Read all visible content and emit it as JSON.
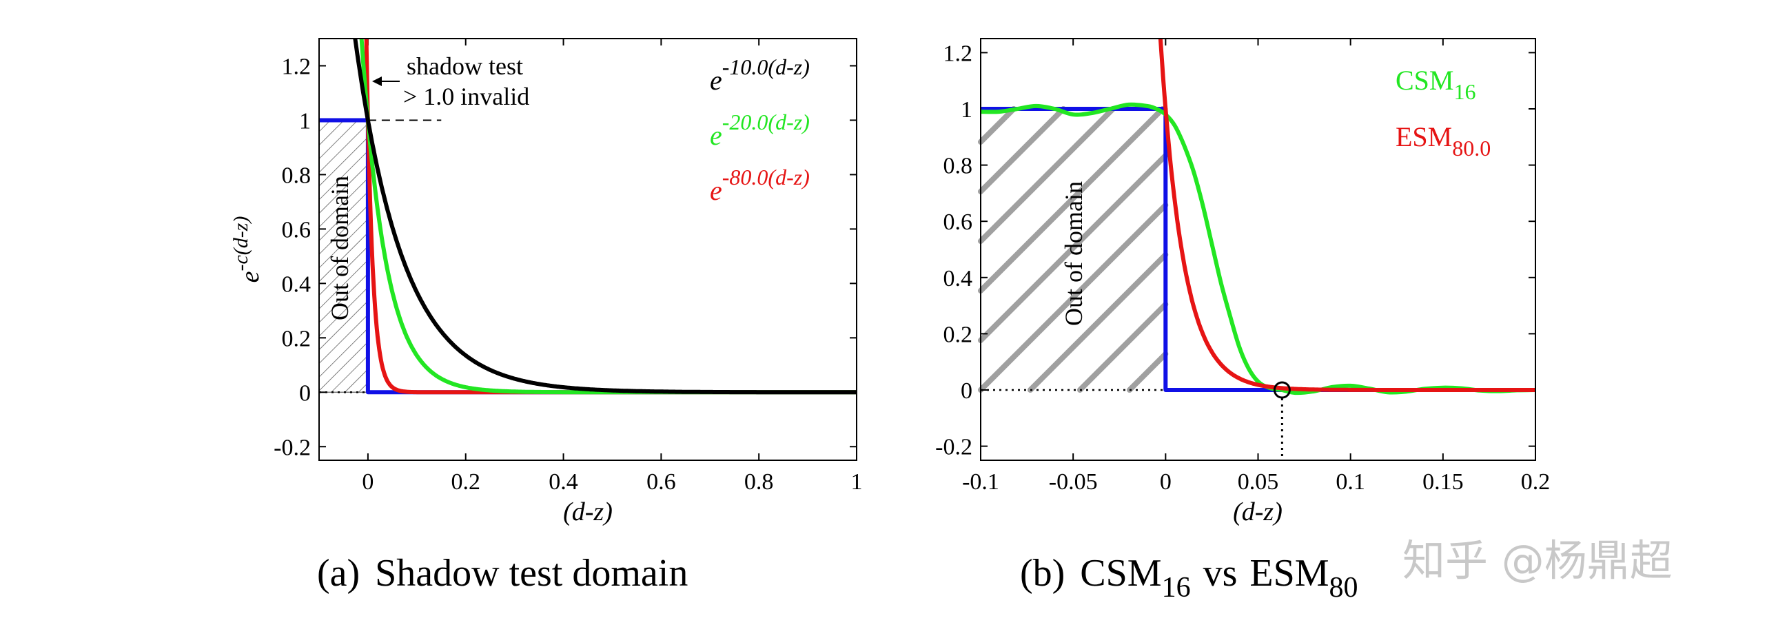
{
  "chart_data": [
    {
      "type": "line",
      "panel": "a",
      "caption_prefix": "(a)",
      "caption_text": "Shadow test domain",
      "xlabel": "(d-z)",
      "ylabel_base": "e",
      "ylabel_sup": "-c(d-z)",
      "xlim": [
        -0.1,
        1.0
      ],
      "ylim": [
        -0.25,
        1.3
      ],
      "xticks": [
        0,
        0.2,
        0.4,
        0.6,
        0.8,
        1
      ],
      "xtick_labels": [
        "0",
        "0.2",
        "0.4",
        "0.6",
        "0.8",
        "1"
      ],
      "yticks": [
        -0.2,
        0,
        0.2,
        0.4,
        0.6,
        0.8,
        1,
        1.2
      ],
      "ytick_labels": [
        "-0.2",
        "0",
        "0.2",
        "0.4",
        "0.6",
        "0.8",
        "1",
        "1.2"
      ],
      "annotation_line1": "shadow test",
      "annotation_line2": "> 1.0 invalid",
      "hatch_label": "Out of domain",
      "series": [
        {
          "name": "step",
          "color": "#1010e6",
          "x": [
            -0.1,
            0,
            0,
            1.0
          ],
          "y": [
            1,
            1,
            0,
            0
          ]
        },
        {
          "name": "exp10",
          "base": "e",
          "sup": "-10.0(d-z)",
          "color": "#000000",
          "c": 10
        },
        {
          "name": "exp20",
          "base": "e",
          "sup": "-20.0(d-z)",
          "color": "#22e622",
          "c": 20
        },
        {
          "name": "exp80",
          "base": "e",
          "sup": "-80.0(d-z)",
          "color": "#e61414",
          "c": 80
        }
      ]
    },
    {
      "type": "line",
      "panel": "b",
      "caption_prefix": "(b)",
      "caption_main1": "CSM",
      "caption_sub1": "16",
      "caption_vs": "vs",
      "caption_main2": "ESM",
      "caption_sub2": "80",
      "xlabel": "(d-z)",
      "xlim": [
        -0.1,
        0.2
      ],
      "ylim": [
        -0.25,
        1.25
      ],
      "xticks": [
        -0.1,
        -0.05,
        0,
        0.05,
        0.1,
        0.15,
        0.2
      ],
      "xtick_labels": [
        "-0.1",
        "-0.05",
        "0",
        "0.05",
        "0.1",
        "0.15",
        "0.2"
      ],
      "yticks": [
        -0.2,
        0,
        0.2,
        0.4,
        0.6,
        0.8,
        1,
        1.2
      ],
      "ytick_labels": [
        "-0.2",
        "0",
        "0.2",
        "0.4",
        "0.6",
        "0.8",
        "1",
        "1.2"
      ],
      "hatch_label": "Out of domain",
      "crossing_x": 0.063,
      "series": [
        {
          "name": "step",
          "color": "#1010e6",
          "x": [
            -0.1,
            0,
            0,
            0.2
          ],
          "y": [
            1,
            1,
            0,
            0
          ]
        },
        {
          "name": "CSM",
          "label": "CSM",
          "sub": "16",
          "color": "#22e622",
          "x": [
            -0.1,
            -0.09,
            -0.08,
            -0.07,
            -0.06,
            -0.05,
            -0.04,
            -0.03,
            -0.02,
            -0.01,
            -0.005,
            0,
            0.005,
            0.01,
            0.015,
            0.02,
            0.025,
            0.03,
            0.035,
            0.04,
            0.045,
            0.05,
            0.055,
            0.06,
            0.063,
            0.07,
            0.08,
            0.09,
            0.1,
            0.11,
            0.12,
            0.13,
            0.14,
            0.15,
            0.16,
            0.17,
            0.18,
            0.19,
            0.2
          ],
          "y": [
            0.99,
            0.99,
            1.0,
            1.01,
            1.0,
            0.98,
            0.985,
            1.0,
            1.015,
            1.01,
            1.0,
            0.98,
            0.94,
            0.87,
            0.78,
            0.66,
            0.52,
            0.38,
            0.26,
            0.15,
            0.075,
            0.03,
            0.01,
            0.002,
            0.0,
            -0.01,
            -0.005,
            0.01,
            0.015,
            0.005,
            -0.008,
            -0.006,
            0.004,
            0.008,
            0.006,
            -0.002,
            -0.004,
            -0.001,
            0.0
          ]
        },
        {
          "name": "ESM",
          "label": "ESM",
          "sub": "80.0",
          "color": "#e61414",
          "c": 80
        }
      ]
    }
  ],
  "watermark": "知乎 @杨鼎超"
}
